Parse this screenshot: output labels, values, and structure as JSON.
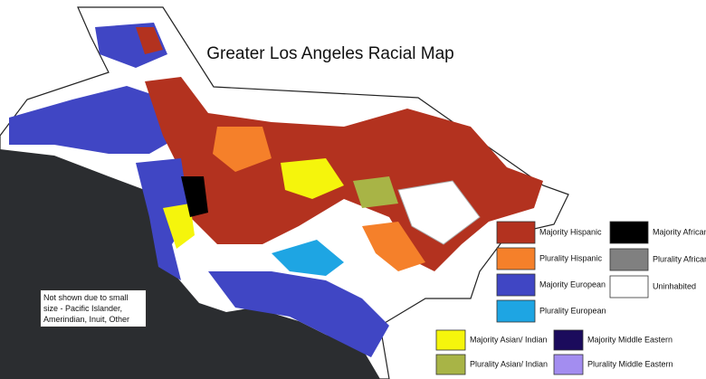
{
  "title": "Greater Los Angeles Racial Map",
  "note": "Not shown due to small size - Pacific Islander, Amerindian, Inuit, Other",
  "legend": [
    {
      "label": "Majority Hispanic",
      "color": "#b3321f"
    },
    {
      "label": "Plurality Hispanic",
      "color": "#f5802a"
    },
    {
      "label": "Majority European",
      "color": "#4046c4"
    },
    {
      "label": "Plurality European",
      "color": "#1ea5e3"
    },
    {
      "label": "Majority African",
      "color": "#000000"
    },
    {
      "label": "Plurality African",
      "color": "#808080"
    },
    {
      "label": "Uninhabited",
      "color": "#ffffff"
    },
    {
      "label": "Majority Asian/ Indian",
      "color": "#f5f50c"
    },
    {
      "label": "Plurality Asian/ Indian",
      "color": "#a8b446"
    },
    {
      "label": "Majority Middle Eastern",
      "color": "#1b0b5c"
    },
    {
      "label": "Plurality Middle Eastern",
      "color": "#a38df0"
    }
  ]
}
